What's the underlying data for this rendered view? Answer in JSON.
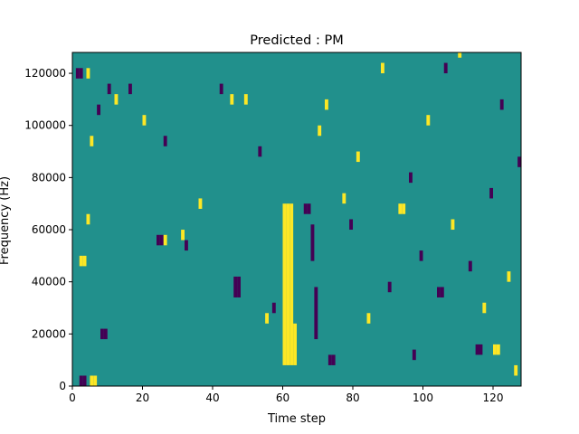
{
  "chart_data": {
    "type": "heatmap",
    "title": "Predicted : PM",
    "xlabel": "Time step",
    "ylabel": "Frequency (Hz)",
    "xlim": [
      0,
      128
    ],
    "ylim": [
      0,
      128000
    ],
    "x_ticks": [
      0,
      20,
      40,
      60,
      80,
      100,
      120
    ],
    "y_ticks": [
      0,
      20000,
      40000,
      60000,
      80000,
      100000,
      120000
    ],
    "value_levels": [
      -1,
      0,
      1
    ],
    "colors": {
      "-1": "#440154",
      "0": "#21908c",
      "1": "#fde725"
    },
    "background_value": 0,
    "grid": false,
    "cells": [
      {
        "t": 60,
        "f_start": 8000,
        "f_end": 70000,
        "v": 1
      },
      {
        "t": 61,
        "f_start": 8000,
        "f_end": 70000,
        "v": 1
      },
      {
        "t": 62,
        "f_start": 8000,
        "f_end": 70000,
        "v": 1
      },
      {
        "t": 63,
        "f_start": 8000,
        "f_end": 24000,
        "v": 1
      },
      {
        "t": 69,
        "f_start": 18000,
        "f_end": 38000,
        "v": -1
      },
      {
        "t": 68,
        "f_start": 48000,
        "f_end": 62000,
        "v": -1
      },
      {
        "t": 2,
        "f_start": 0,
        "f_end": 4000,
        "v": -1
      },
      {
        "t": 3,
        "f_start": 0,
        "f_end": 4000,
        "v": -1
      },
      {
        "t": 5,
        "f_start": 0,
        "f_end": 4000,
        "v": 1
      },
      {
        "t": 6,
        "f_start": 0,
        "f_end": 4000,
        "v": 1
      },
      {
        "t": 1,
        "f_start": 118000,
        "f_end": 122000,
        "v": -1
      },
      {
        "t": 2,
        "f_start": 118000,
        "f_end": 122000,
        "v": -1
      },
      {
        "t": 4,
        "f_start": 118000,
        "f_end": 122000,
        "v": 1
      },
      {
        "t": 8,
        "f_start": 18000,
        "f_end": 22000,
        "v": -1
      },
      {
        "t": 9,
        "f_start": 18000,
        "f_end": 22000,
        "v": -1
      },
      {
        "t": 4,
        "f_start": 62000,
        "f_end": 66000,
        "v": 1
      },
      {
        "t": 2,
        "f_start": 46000,
        "f_end": 50000,
        "v": 1
      },
      {
        "t": 3,
        "f_start": 46000,
        "f_end": 50000,
        "v": 1
      },
      {
        "t": 24,
        "f_start": 54000,
        "f_end": 58000,
        "v": -1
      },
      {
        "t": 25,
        "f_start": 54000,
        "f_end": 58000,
        "v": -1
      },
      {
        "t": 26,
        "f_start": 54000,
        "f_end": 58000,
        "v": 1
      },
      {
        "t": 46,
        "f_start": 34000,
        "f_end": 42000,
        "v": -1
      },
      {
        "t": 47,
        "f_start": 34000,
        "f_end": 42000,
        "v": -1
      },
      {
        "t": 66,
        "f_start": 66000,
        "f_end": 70000,
        "v": -1
      },
      {
        "t": 67,
        "f_start": 66000,
        "f_end": 70000,
        "v": -1
      },
      {
        "t": 73,
        "f_start": 8000,
        "f_end": 12000,
        "v": -1
      },
      {
        "t": 74,
        "f_start": 8000,
        "f_end": 12000,
        "v": -1
      },
      {
        "t": 93,
        "f_start": 66000,
        "f_end": 70000,
        "v": 1
      },
      {
        "t": 94,
        "f_start": 66000,
        "f_end": 70000,
        "v": 1
      },
      {
        "t": 120,
        "f_start": 12000,
        "f_end": 16000,
        "v": 1
      },
      {
        "t": 121,
        "f_start": 12000,
        "f_end": 16000,
        "v": 1
      },
      {
        "t": 115,
        "f_start": 12000,
        "f_end": 16000,
        "v": -1
      },
      {
        "t": 116,
        "f_start": 12000,
        "f_end": 16000,
        "v": -1
      },
      {
        "t": 104,
        "f_start": 34000,
        "f_end": 38000,
        "v": -1
      },
      {
        "t": 105,
        "f_start": 34000,
        "f_end": 38000,
        "v": -1
      },
      {
        "t": 7,
        "f_start": 104000,
        "f_end": 108000,
        "v": -1
      },
      {
        "t": 5,
        "f_start": 92000,
        "f_end": 96000,
        "v": 1
      },
      {
        "t": 10,
        "f_start": 112000,
        "f_end": 116000,
        "v": -1
      },
      {
        "t": 12,
        "f_start": 108000,
        "f_end": 112000,
        "v": 1
      },
      {
        "t": 16,
        "f_start": 112000,
        "f_end": 116000,
        "v": -1
      },
      {
        "t": 20,
        "f_start": 100000,
        "f_end": 104000,
        "v": 1
      },
      {
        "t": 26,
        "f_start": 92000,
        "f_end": 96000,
        "v": -1
      },
      {
        "t": 31,
        "f_start": 56000,
        "f_end": 60000,
        "v": 1
      },
      {
        "t": 32,
        "f_start": 52000,
        "f_end": 56000,
        "v": -1
      },
      {
        "t": 36,
        "f_start": 68000,
        "f_end": 72000,
        "v": 1
      },
      {
        "t": 42,
        "f_start": 112000,
        "f_end": 116000,
        "v": -1
      },
      {
        "t": 45,
        "f_start": 108000,
        "f_end": 112000,
        "v": 1
      },
      {
        "t": 49,
        "f_start": 108000,
        "f_end": 112000,
        "v": 1
      },
      {
        "t": 53,
        "f_start": 88000,
        "f_end": 92000,
        "v": -1
      },
      {
        "t": 55,
        "f_start": 24000,
        "f_end": 28000,
        "v": 1
      },
      {
        "t": 57,
        "f_start": 28000,
        "f_end": 32000,
        "v": -1
      },
      {
        "t": 70,
        "f_start": 96000,
        "f_end": 100000,
        "v": 1
      },
      {
        "t": 72,
        "f_start": 106000,
        "f_end": 110000,
        "v": 1
      },
      {
        "t": 77,
        "f_start": 70000,
        "f_end": 74000,
        "v": 1
      },
      {
        "t": 79,
        "f_start": 60000,
        "f_end": 64000,
        "v": -1
      },
      {
        "t": 81,
        "f_start": 86000,
        "f_end": 90000,
        "v": 1
      },
      {
        "t": 84,
        "f_start": 24000,
        "f_end": 28000,
        "v": 1
      },
      {
        "t": 88,
        "f_start": 120000,
        "f_end": 124000,
        "v": 1
      },
      {
        "t": 90,
        "f_start": 36000,
        "f_end": 40000,
        "v": -1
      },
      {
        "t": 96,
        "f_start": 78000,
        "f_end": 82000,
        "v": -1
      },
      {
        "t": 97,
        "f_start": 10000,
        "f_end": 14000,
        "v": -1
      },
      {
        "t": 99,
        "f_start": 48000,
        "f_end": 52000,
        "v": -1
      },
      {
        "t": 101,
        "f_start": 100000,
        "f_end": 104000,
        "v": 1
      },
      {
        "t": 106,
        "f_start": 120000,
        "f_end": 124000,
        "v": -1
      },
      {
        "t": 108,
        "f_start": 60000,
        "f_end": 64000,
        "v": 1
      },
      {
        "t": 110,
        "f_start": 126000,
        "f_end": 128000,
        "v": 1
      },
      {
        "t": 113,
        "f_start": 44000,
        "f_end": 48000,
        "v": -1
      },
      {
        "t": 117,
        "f_start": 28000,
        "f_end": 32000,
        "v": 1
      },
      {
        "t": 119,
        "f_start": 72000,
        "f_end": 76000,
        "v": -1
      },
      {
        "t": 122,
        "f_start": 106000,
        "f_end": 110000,
        "v": -1
      },
      {
        "t": 124,
        "f_start": 40000,
        "f_end": 44000,
        "v": 1
      },
      {
        "t": 126,
        "f_start": 4000,
        "f_end": 8000,
        "v": 1
      },
      {
        "t": 127,
        "f_start": 84000,
        "f_end": 88000,
        "v": -1
      }
    ]
  }
}
